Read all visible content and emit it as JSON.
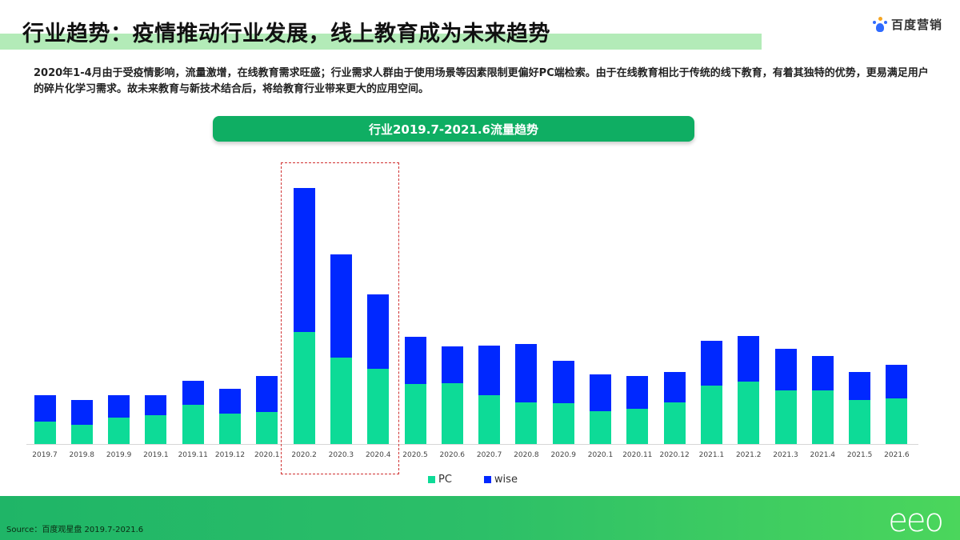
{
  "header": {
    "title": "行业趋势：疫情推动行业发展，线上教育成为未来趋势",
    "brand": "百度营销",
    "brand_icon": "baidu-paw-icon"
  },
  "description": "2020年1-4月由于受疫情影响，流量激增，在线教育需求旺盛；行业需求人群由于使用场景等因素限制更偏好PC端检索。由于在线教育相比于传统的线下教育，有着其独特的优势，更易满足用户的碎片化学习需求。故未来教育与新技术结合后，将给教育行业带来更大的应用空间。",
  "chart_title": "行业2019.7-2021.6流量趋势",
  "legend": [
    {
      "label": "PC",
      "color": "#0ddb97"
    },
    {
      "label": "wise",
      "color": "#0028ff"
    }
  ],
  "colors": {
    "pc": "#0ddb97",
    "wise": "#0028ff",
    "highlight": "#d03232",
    "accent": "#0fae63"
  },
  "chart_data": {
    "type": "bar",
    "stacked": true,
    "title": "行业2019.7-2021.6流量趋势",
    "xlabel": "",
    "ylabel": "",
    "grid": false,
    "legend_position": "bottom",
    "categories": [
      "2019.7",
      "2019.8",
      "2019.9",
      "2019.1",
      "2019.11",
      "2019.12",
      "2020.1",
      "2020.2",
      "2020.3",
      "2020.4",
      "2020.5",
      "2020.6",
      "2020.7",
      "2020.8",
      "2020.9",
      "2020.1",
      "2020.11",
      "2020.12",
      "2021.1",
      "2021.2",
      "2021.3",
      "2021.4",
      "2021.5",
      "2021.6"
    ],
    "series": [
      {
        "name": "PC",
        "values": [
          28,
          24,
          33,
          36,
          49,
          38,
          40,
          140,
          108,
          94,
          75,
          76,
          61,
          52,
          51,
          41,
          44,
          52,
          73,
          78,
          67,
          67,
          55,
          57
        ]
      },
      {
        "name": "wise",
        "values": [
          33,
          31,
          28,
          25,
          30,
          31,
          45,
          180,
          129,
          93,
          59,
          46,
          62,
          73,
          53,
          46,
          41,
          38,
          56,
          57,
          52,
          43,
          35,
          42
        ]
      }
    ],
    "annotations": [
      "Dashed red box highlighting 2020.2-2020.4"
    ],
    "ylim": [
      0,
      330
    ]
  },
  "footer": {
    "source": "Source：百度观星盘 2019.7-2021.6",
    "logo": "eeo"
  }
}
